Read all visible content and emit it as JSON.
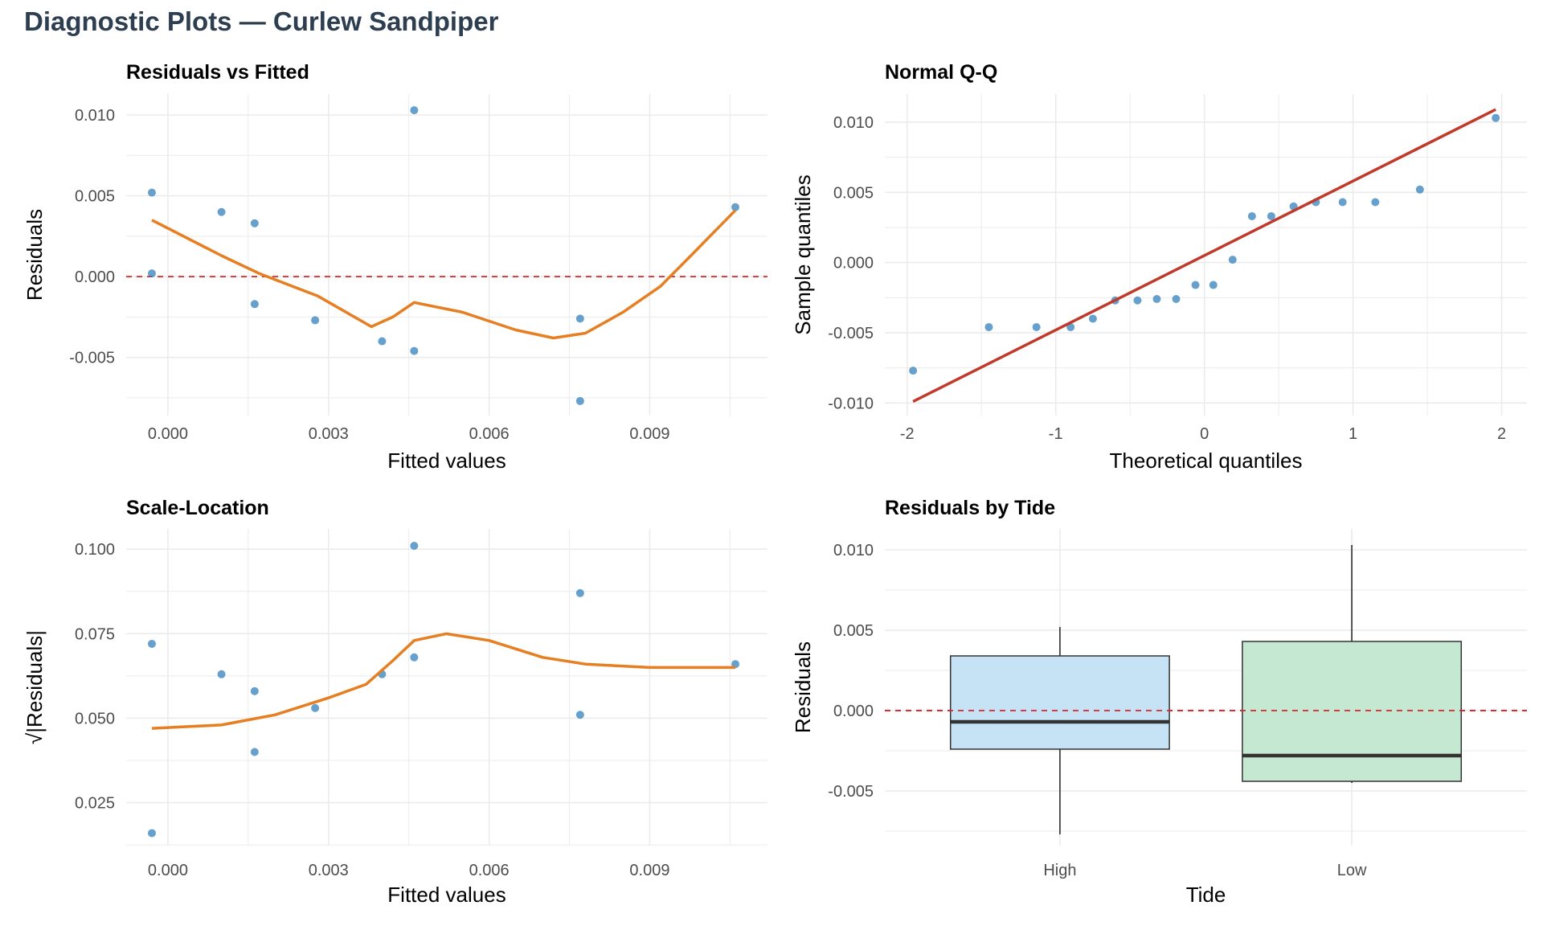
{
  "title": "Diagnostic Plots — Curlew Sandpiper",
  "colors": {
    "point": "#2b7bba",
    "smooth": "#e67e22",
    "qqline": "#c0392b",
    "refline": "#d62728",
    "box_high": "#c6e2f5",
    "box_low": "#c4e8d2",
    "grid": "#ebebeb"
  },
  "chart_data": [
    {
      "type": "scatter",
      "title": "Residuals vs Fitted",
      "xlabel": "Fitted values",
      "ylabel": "Residuals",
      "xlim": [
        -0.00078,
        0.0112
      ],
      "ylim": [
        -0.0086,
        0.0113
      ],
      "xticks": [
        0,
        0.003,
        0.006,
        0.009
      ],
      "xtick_labels": [
        "0.000",
        "0.003",
        "0.006",
        "0.009"
      ],
      "yticks": [
        -0.005,
        0,
        0.005,
        0.01
      ],
      "ytick_labels": [
        "-0.005",
        "0.000",
        "0.005",
        "0.010"
      ],
      "points": [
        [
          -0.0003,
          0.0052
        ],
        [
          -0.0003,
          0.0002
        ],
        [
          0.001,
          0.004
        ],
        [
          0.00162,
          0.0033
        ],
        [
          0.00162,
          -0.0017
        ],
        [
          0.00275,
          -0.0027
        ],
        [
          0.004,
          -0.004
        ],
        [
          0.0046,
          0.0103
        ],
        [
          0.0046,
          -0.0046
        ],
        [
          0.0077,
          -0.0026
        ],
        [
          0.0077,
          -0.0077
        ],
        [
          0.0106,
          0.0043
        ]
      ],
      "smooth": [
        [
          -0.0003,
          0.0035
        ],
        [
          0.001,
          0.0013
        ],
        [
          0.0017,
          0.0002
        ],
        [
          0.0028,
          -0.0012
        ],
        [
          0.0038,
          -0.0031
        ],
        [
          0.0042,
          -0.0025
        ],
        [
          0.0046,
          -0.0016
        ],
        [
          0.0055,
          -0.0022
        ],
        [
          0.0065,
          -0.0033
        ],
        [
          0.0072,
          -0.0038
        ],
        [
          0.0078,
          -0.0035
        ],
        [
          0.0085,
          -0.0022
        ],
        [
          0.0092,
          -0.0006
        ],
        [
          0.0098,
          0.0014
        ],
        [
          0.0106,
          0.0041
        ]
      ],
      "hline": 0
    },
    {
      "type": "scatter",
      "title": "Normal Q-Q",
      "xlabel": "Theoretical quantiles",
      "ylabel": "Sample quantiles",
      "xlim": [
        -2.15,
        2.17
      ],
      "ylim": [
        -0.0109,
        0.012
      ],
      "xticks": [
        -2,
        -1,
        0,
        1,
        2
      ],
      "xtick_labels": [
        "-2",
        "-1",
        "0",
        "1",
        "2"
      ],
      "yticks": [
        -0.01,
        -0.005,
        0,
        0.005,
        0.01
      ],
      "ytick_labels": [
        "-0.010",
        "-0.005",
        "0.000",
        "0.005",
        "0.010"
      ],
      "points": [
        [
          -1.96,
          -0.0077
        ],
        [
          -1.45,
          -0.0046
        ],
        [
          -1.13,
          -0.0046
        ],
        [
          -0.9,
          -0.0046
        ],
        [
          -0.75,
          -0.004
        ],
        [
          -0.6,
          -0.0027
        ],
        [
          -0.45,
          -0.0027
        ],
        [
          -0.32,
          -0.0026
        ],
        [
          -0.19,
          -0.0026
        ],
        [
          -0.06,
          -0.0016
        ],
        [
          0.06,
          -0.0016
        ],
        [
          0.19,
          0.0002
        ],
        [
          0.32,
          0.0033
        ],
        [
          0.45,
          0.0033
        ],
        [
          0.6,
          0.004
        ],
        [
          0.75,
          0.0043
        ],
        [
          0.93,
          0.0043
        ],
        [
          1.15,
          0.0043
        ],
        [
          1.45,
          0.0052
        ],
        [
          1.96,
          0.0103
        ]
      ],
      "line": [
        [
          -1.96,
          -0.0099
        ],
        [
          1.96,
          0.0109
        ]
      ]
    },
    {
      "type": "scatter",
      "title": "Scale-Location",
      "xlabel": "Fitted values",
      "ylabel": "√|Residuals|",
      "xlim": [
        -0.00078,
        0.0112
      ],
      "ylim": [
        0.0123,
        0.106
      ],
      "xticks": [
        0,
        0.003,
        0.006,
        0.009
      ],
      "xtick_labels": [
        "0.000",
        "0.003",
        "0.006",
        "0.009"
      ],
      "yticks": [
        0.025,
        0.05,
        0.075,
        0.1
      ],
      "ytick_labels": [
        "0.025",
        "0.050",
        "0.075",
        "0.100"
      ],
      "points": [
        [
          -0.0003,
          0.072
        ],
        [
          -0.0003,
          0.016
        ],
        [
          0.001,
          0.063
        ],
        [
          0.00162,
          0.058
        ],
        [
          0.00162,
          0.04
        ],
        [
          0.00275,
          0.053
        ],
        [
          0.004,
          0.063
        ],
        [
          0.0046,
          0.068
        ],
        [
          0.0046,
          0.101
        ],
        [
          0.0077,
          0.087
        ],
        [
          0.0077,
          0.051
        ],
        [
          0.0106,
          0.066
        ]
      ],
      "smooth": [
        [
          -0.0003,
          0.047
        ],
        [
          0.001,
          0.048
        ],
        [
          0.002,
          0.051
        ],
        [
          0.003,
          0.056
        ],
        [
          0.0037,
          0.06
        ],
        [
          0.0042,
          0.067
        ],
        [
          0.0046,
          0.073
        ],
        [
          0.0052,
          0.075
        ],
        [
          0.006,
          0.073
        ],
        [
          0.007,
          0.068
        ],
        [
          0.0078,
          0.066
        ],
        [
          0.009,
          0.065
        ],
        [
          0.0106,
          0.065
        ]
      ]
    },
    {
      "type": "box",
      "title": "Residuals by Tide",
      "xlabel": "Tide",
      "ylabel": "Residuals",
      "ylim": [
        -0.0084,
        0.0113
      ],
      "yticks": [
        -0.005,
        0,
        0.005,
        0.01
      ],
      "ytick_labels": [
        "-0.005",
        "0.000",
        "0.005",
        "0.010"
      ],
      "categories": [
        "High",
        "Low"
      ],
      "boxes": [
        {
          "name": "High",
          "min": -0.0077,
          "q1": -0.0024,
          "median": -0.0007,
          "q3": 0.0034,
          "max": 0.0052
        },
        {
          "name": "Low",
          "min": -0.0045,
          "q1": -0.0044,
          "median": -0.0028,
          "q3": 0.0043,
          "max": 0.0103
        }
      ],
      "hline": 0
    }
  ]
}
